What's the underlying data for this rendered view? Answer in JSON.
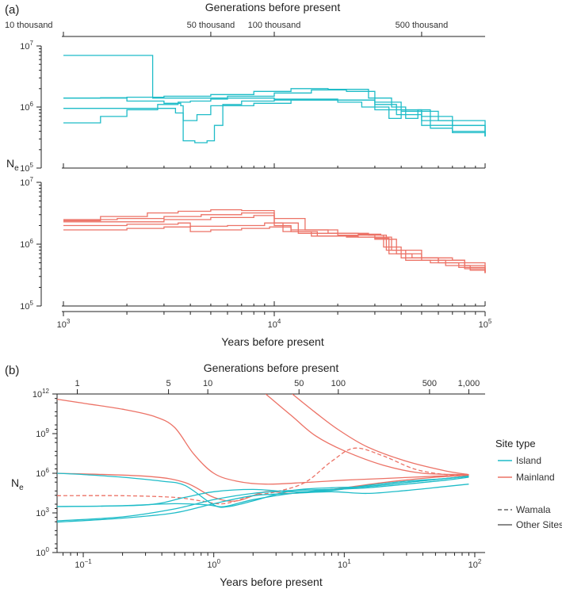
{
  "colors": {
    "island": "#1fbcc8",
    "mainland": "#ec7266",
    "axis": "#222222",
    "legend_line": "#444444"
  },
  "chart_data": [
    {
      "panel": "(a)",
      "type": "line",
      "title_top": "Generations before present",
      "top_ticks": [
        {
          "label": "10 thousand",
          "years": 1000
        },
        {
          "label": "50 thousand",
          "years": 5000
        },
        {
          "label": "100 thousand",
          "years": 10000
        },
        {
          "label": "500 thousand",
          "years": 50000
        }
      ],
      "xlabel": "Years before present",
      "x_scale": "log",
      "xlim": [
        800,
        120000
      ],
      "x_ticks": [
        1000,
        10000,
        100000
      ],
      "x_tick_labels": [
        {
          "base": "10",
          "exp": "3"
        },
        {
          "base": "10",
          "exp": "4"
        },
        {
          "base": "10",
          "exp": "5"
        }
      ],
      "ylabel": "N",
      "ylabel_sub": "e",
      "y_scale": "log",
      "ylim": [
        100000,
        10000000
      ],
      "y_tick_labels": [
        {
          "base": "10",
          "exp": "5"
        },
        {
          "base": "10",
          "exp": "6"
        },
        {
          "base": "10",
          "exp": "7"
        }
      ],
      "subplots": [
        {
          "group": "Island",
          "series": [
            {
              "name": "Island 1",
              "x": [
                1000,
                2600,
                2650,
                5000,
                10000,
                20000,
                30000,
                38000,
                50000,
                100000
              ],
              "y": [
                7000000,
                7000000,
                1400000,
                1400000,
                1350000,
                1300000,
                1100000,
                900000,
                500000,
                330000
              ]
            },
            {
              "name": "Island 2",
              "x": [
                1000,
                1500,
                2000,
                2800,
                3500,
                4000,
                5000,
                6000,
                10000,
                15000,
                22000,
                30000,
                40000,
                60000,
                100000
              ],
              "y": [
                550000,
                700000,
                900000,
                1100000,
                1200000,
                1250000,
                1350000,
                1500000,
                1700000,
                1900000,
                1800000,
                1200000,
                850000,
                600000,
                330000
              ]
            },
            {
              "name": "Island 3",
              "x": [
                1000,
                3000,
                3400,
                3700,
                4200,
                4800,
                5200,
                5700,
                7000,
                10000,
                14000,
                20000,
                26000,
                30000,
                38000,
                50000,
                70000,
                100000
              ],
              "y": [
                950000,
                950000,
                800000,
                280000,
                260000,
                280000,
                500000,
                1100000,
                1250000,
                1300000,
                1300000,
                1200000,
                1000000,
                900000,
                750000,
                600000,
                380000,
                330000
              ]
            },
            {
              "name": "Island 4",
              "x": [
                1000,
                1500,
                2000,
                3000,
                3600,
                3700,
                4300,
                5000,
                8000,
                12000,
                20000,
                30000,
                35000,
                40000,
                50000,
                70000,
                100000
              ],
              "y": [
                1400000,
                1400000,
                1250000,
                1150000,
                1050000,
                600000,
                750000,
                1050000,
                1150000,
                1300000,
                1300000,
                1000000,
                650000,
                850000,
                700000,
                500000,
                330000
              ]
            },
            {
              "name": "Island 5",
              "x": [
                1000,
                1500,
                2000,
                3000,
                5000,
                8000,
                12000,
                18000,
                28000,
                36000,
                42000,
                48000,
                55000,
                70000,
                100000
              ],
              "y": [
                1400000,
                1420000,
                1450000,
                1500000,
                1600000,
                1800000,
                2000000,
                1950000,
                1400000,
                1000000,
                650000,
                900000,
                450000,
                400000,
                340000
              ]
            }
          ]
        },
        {
          "group": "Mainland",
          "series": [
            {
              "name": "Mainland 1",
              "x": [
                1000,
                2000,
                3000,
                5000,
                8000,
                10000,
                12000,
                18000,
                25000,
                32000,
                34000,
                50000,
                70000,
                80000,
                100000
              ],
              "y": [
                2300000,
                2300000,
                2500000,
                2700000,
                2900000,
                2000000,
                1700000,
                1500000,
                1450000,
                1400000,
                800000,
                600000,
                550000,
                400000,
                340000
              ]
            },
            {
              "name": "Mainland 2",
              "x": [
                1000,
                2000,
                3000,
                4000,
                6000,
                9000,
                11000,
                15000,
                22000,
                30000,
                35000,
                45000,
                60000,
                80000,
                100000
              ],
              "y": [
                1700000,
                1800000,
                1900000,
                1950000,
                2000000,
                2200000,
                1600000,
                1350000,
                1300000,
                1250000,
                700000,
                600000,
                500000,
                450000,
                340000
              ]
            },
            {
              "name": "Mainland 3",
              "x": [
                1000,
                1800,
                3000,
                4500,
                7000,
                10000,
                13000,
                20000,
                30000,
                36000,
                42000,
                55000,
                75000,
                100000
              ],
              "y": [
                2500000,
                2600000,
                2800000,
                3000000,
                3200000,
                2200000,
                1500000,
                1400000,
                1300000,
                800000,
                550000,
                500000,
                420000,
                340000
              ]
            },
            {
              "name": "Mainland 4",
              "x": [
                1000,
                2000,
                3500,
                4000,
                5000,
                7000,
                9500,
                12000,
                16000,
                25000,
                30000,
                38000,
                50000,
                65000,
                85000,
                100000
              ],
              "y": [
                2000000,
                2100000,
                2200000,
                1600000,
                1700000,
                1800000,
                1900000,
                1600000,
                1350000,
                1300000,
                1200000,
                700000,
                550000,
                450000,
                380000,
                340000
              ]
            },
            {
              "name": "Mainland 5",
              "x": [
                1000,
                1500,
                2500,
                3500,
                5000,
                7000,
                10000,
                14000,
                20000,
                28000,
                33000,
                40000,
                60000,
                80000,
                100000
              ],
              "y": [
                2400000,
                2800000,
                3200000,
                3400000,
                3600000,
                3500000,
                2600000,
                1700000,
                1500000,
                1400000,
                900000,
                600000,
                550000,
                500000,
                340000
              ]
            }
          ]
        }
      ]
    },
    {
      "panel": "(b)",
      "type": "line",
      "title_top": "Generations before present",
      "top_ticks": [
        {
          "label": "1",
          "years": 0.09
        },
        {
          "label": "5",
          "years": 0.45
        },
        {
          "label": "10",
          "years": 0.9
        },
        {
          "label": "50",
          "years": 4.5
        },
        {
          "label": "100",
          "years": 9
        },
        {
          "label": "500",
          "years": 45
        },
        {
          "label": "1,000",
          "years": 90
        }
      ],
      "xlabel": "Years before present",
      "x_scale": "log",
      "xlim": [
        0.063,
        120
      ],
      "x_ticks": [
        0.1,
        1,
        10,
        100
      ],
      "x_tick_labels": [
        {
          "base": "10",
          "exp": "−1"
        },
        {
          "base": "10",
          "exp": "0"
        },
        {
          "base": "10",
          "exp": "1"
        },
        {
          "base": "10",
          "exp": "2"
        }
      ],
      "ylabel": "N",
      "ylabel_sub": "e",
      "y_scale": "log",
      "ylim": [
        1,
        1000000000000
      ],
      "y_ticks": [
        1,
        1000,
        1000000,
        1000000000,
        1000000000000
      ],
      "y_tick_labels": [
        {
          "base": "10",
          "exp": "0"
        },
        {
          "base": "10",
          "exp": "3"
        },
        {
          "base": "10",
          "exp": "6"
        },
        {
          "base": "10",
          "exp": "9"
        },
        {
          "base": "10",
          "exp": "12"
        }
      ],
      "series": [
        {
          "name": "Mainland A",
          "group": "Mainland",
          "dashed": false,
          "x": [
            0.063,
            0.1,
            0.2,
            0.35,
            0.5,
            0.7,
            1.0,
            1.5,
            2.5,
            5,
            10,
            20,
            50,
            90
          ],
          "y": [
            400000000000,
            200000000000,
            70000000000,
            20000000000,
            3000000000,
            30000000,
            1000000,
            250000,
            150000,
            200000,
            300000,
            400000,
            600000,
            700000
          ]
        },
        {
          "name": "Mainland B",
          "group": "Mainland",
          "dashed": false,
          "x": [
            2.5,
            4,
            6,
            10,
            20,
            40,
            90
          ],
          "y": [
            1000000000000,
            20000000000,
            700000000,
            50000000,
            4000000,
            1000000,
            800000
          ]
        },
        {
          "name": "Mainland C",
          "group": "Mainland",
          "dashed": false,
          "x": [
            4,
            6,
            9,
            15,
            30,
            60,
            90
          ],
          "y": [
            1000000000000,
            40000000000,
            2000000000,
            100000000,
            8000000,
            1500000,
            800000
          ]
        },
        {
          "name": "Mainland Wamala",
          "group": "Mainland",
          "dashed": true,
          "x": [
            0.063,
            0.2,
            0.5,
            0.8,
            1.2,
            2,
            3,
            5,
            8,
            12,
            20,
            35,
            60,
            90
          ],
          "y": [
            20000,
            20000,
            15000,
            8000,
            5000,
            20000,
            40000,
            200000,
            8000000,
            80000000,
            20000000,
            2000000,
            800000,
            700000
          ]
        },
        {
          "name": "Mainland D",
          "group": "Mainland",
          "dashed": false,
          "x": [
            0.063,
            0.3,
            0.6,
            1.0,
            1.5,
            2.5,
            4,
            8,
            20,
            50,
            90
          ],
          "y": [
            1000000,
            600000,
            200000,
            15000,
            8000,
            40000,
            30000,
            60000,
            200000,
            500000,
            700000
          ]
        },
        {
          "name": "Island 1",
          "group": "Island",
          "dashed": false,
          "x": [
            0.063,
            0.1,
            0.2,
            0.4,
            0.6,
            1.0,
            1.3,
            2,
            4,
            8,
            15,
            30,
            60,
            90
          ],
          "y": [
            1000000,
            800000,
            500000,
            250000,
            120000,
            4000,
            3000,
            8000,
            50000,
            80000,
            100000,
            200000,
            400000,
            600000
          ]
        },
        {
          "name": "Island 2",
          "group": "Island",
          "dashed": false,
          "x": [
            0.063,
            0.2,
            0.5,
            1.0,
            2,
            4,
            8,
            15,
            30,
            60,
            90
          ],
          "y": [
            200,
            400,
            1000,
            5000,
            20000,
            30000,
            40000,
            30000,
            50000,
            100000,
            150000
          ]
        },
        {
          "name": "Island 3",
          "group": "Island",
          "dashed": false,
          "x": [
            0.063,
            0.2,
            0.5,
            1.0,
            2,
            4,
            8,
            15,
            30,
            60,
            90
          ],
          "y": [
            250,
            500,
            2000,
            10000,
            30000,
            50000,
            60000,
            80000,
            150000,
            300000,
            500000
          ]
        },
        {
          "name": "Island 4",
          "group": "Island",
          "dashed": false,
          "x": [
            0.063,
            0.2,
            0.5,
            0.9,
            1.2,
            2,
            4,
            8,
            15,
            30,
            60,
            90
          ],
          "y": [
            3000,
            3500,
            5000,
            4000,
            3000,
            10000,
            30000,
            60000,
            100000,
            200000,
            400000,
            600000
          ]
        },
        {
          "name": "Island 5",
          "group": "Island",
          "dashed": false,
          "x": [
            0.063,
            0.3,
            0.6,
            1.0,
            2,
            4,
            8,
            15,
            30,
            60,
            90
          ],
          "y": [
            3000,
            4000,
            15000,
            40000,
            60000,
            40000,
            50000,
            120000,
            250000,
            400000,
            600000
          ]
        }
      ],
      "legend": {
        "title": "Site type",
        "items": [
          {
            "label": "Island",
            "group": "Island"
          },
          {
            "label": "Mainland",
            "group": "Mainland"
          }
        ],
        "style_items": [
          {
            "label": "Wamala",
            "dashed": true
          },
          {
            "label": "Other Sites",
            "dashed": false
          }
        ],
        "position": "right"
      }
    }
  ]
}
